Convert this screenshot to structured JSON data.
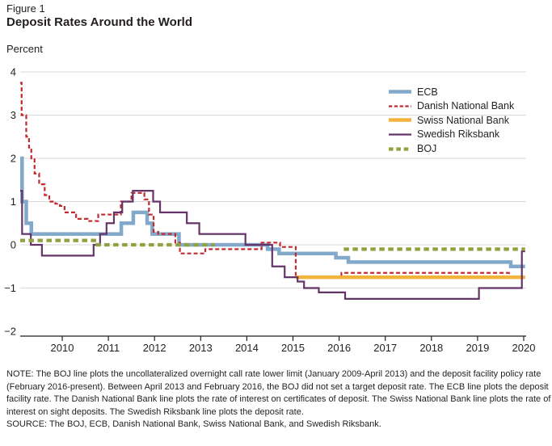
{
  "figure": {
    "label": "Figure 1",
    "title": "Deposit Rates Around the World",
    "axis_unit": "Percent"
  },
  "footer": {
    "note": "NOTE: The BOJ line plots the uncollateralized overnight call rate lower limit (January 2009-April 2013) and the deposit facility policy rate (February 2016-present). Between April 2013 and February 2016, the BOJ did not set a target deposit rate. The ECB line plots the deposit facility rate. The Danish National Bank line plots the rate of interest on certificates of deposit. The Swiss National Bank line plots the rate of interest on sight deposits. The Swedish Riksbank line plots the deposit rate.",
    "source": "SOURCE: The BOJ, ECB, Danish National Bank, Swiss National Bank, and Swedish Riksbank."
  },
  "colors": {
    "text": "#231f20",
    "grid": "#d9d9d9",
    "axis": "#231f20",
    "background": "#ffffff"
  },
  "chart_data": {
    "type": "line",
    "step": true,
    "title": "Deposit Rates Around the World",
    "xlabel": "",
    "ylabel": "Percent",
    "xlim": [
      2009.08,
      2020.03
    ],
    "ylim": [
      -2,
      4
    ],
    "x_ticks": [
      2010,
      2011,
      2012,
      2013,
      2014,
      2015,
      2016,
      2017,
      2018,
      2019,
      2020
    ],
    "y_ticks": [
      4,
      3,
      2,
      1,
      0,
      -1,
      -2
    ],
    "y_tick_labels": [
      "4",
      "3",
      "2",
      "1",
      "0",
      "−1",
      "−2"
    ],
    "grid": true,
    "legend_position": "upper right",
    "series": [
      {
        "name": "ECB",
        "color": "#82a8cc",
        "width": 4.5,
        "dash": null,
        "segments": [
          [
            [
              2009.08,
              2.0
            ],
            [
              2009.13,
              1.0
            ],
            [
              2009.22,
              0.5
            ],
            [
              2009.33,
              0.25
            ],
            [
              2011.28,
              0.5
            ],
            [
              2011.54,
              0.75
            ],
            [
              2011.84,
              0.5
            ],
            [
              2011.95,
              0.25
            ],
            [
              2012.53,
              0.0
            ],
            [
              2014.45,
              -0.1
            ],
            [
              2014.7,
              -0.2
            ],
            [
              2015.93,
              -0.3
            ],
            [
              2016.2,
              -0.4
            ],
            [
              2019.72,
              -0.5
            ],
            [
              2020.03,
              -0.5
            ]
          ]
        ]
      },
      {
        "name": "Danish National Bank",
        "color": "#bf2b30",
        "width": 2.2,
        "dash": [
          5,
          3
        ],
        "segments": [
          [
            [
              2009.08,
              3.75
            ],
            [
              2009.12,
              3.0
            ],
            [
              2009.22,
              2.5
            ],
            [
              2009.28,
              2.25
            ],
            [
              2009.33,
              2.0
            ],
            [
              2009.4,
              1.65
            ],
            [
              2009.5,
              1.4
            ],
            [
              2009.62,
              1.15
            ],
            [
              2009.72,
              1.0
            ],
            [
              2009.85,
              0.95
            ],
            [
              2009.95,
              0.9
            ],
            [
              2010.05,
              0.75
            ],
            [
              2010.3,
              0.6
            ],
            [
              2010.55,
              0.55
            ],
            [
              2010.78,
              0.7
            ],
            [
              2011.27,
              1.0
            ],
            [
              2011.5,
              1.2
            ],
            [
              2011.78,
              1.05
            ],
            [
              2011.88,
              0.7
            ],
            [
              2011.98,
              0.3
            ],
            [
              2012.08,
              0.25
            ],
            [
              2012.45,
              0.05
            ],
            [
              2012.55,
              -0.2
            ],
            [
              2013.1,
              -0.1
            ],
            [
              2014.32,
              0.05
            ],
            [
              2014.72,
              -0.05
            ],
            [
              2015.06,
              -0.75
            ],
            [
              2016.05,
              -0.65
            ],
            [
              2019.68,
              -0.75
            ],
            [
              2020.03,
              -0.75
            ]
          ]
        ]
      },
      {
        "name": "Swiss National Bank",
        "color": "#f3b33c",
        "width": 4.5,
        "dash": null,
        "segments": [
          [
            [
              2015.06,
              -0.75
            ],
            [
              2020.03,
              -0.75
            ]
          ]
        ]
      },
      {
        "name": "Swedish Riksbank",
        "color": "#653569",
        "width": 2.2,
        "dash": null,
        "segments": [
          [
            [
              2009.08,
              1.25
            ],
            [
              2009.13,
              0.25
            ],
            [
              2009.32,
              0.0
            ],
            [
              2009.56,
              -0.25
            ],
            [
              2010.68,
              0.0
            ],
            [
              2010.82,
              0.25
            ],
            [
              2010.96,
              0.5
            ],
            [
              2011.12,
              0.75
            ],
            [
              2011.3,
              1.0
            ],
            [
              2011.53,
              1.25
            ],
            [
              2011.97,
              1.0
            ],
            [
              2012.12,
              0.75
            ],
            [
              2012.7,
              0.5
            ],
            [
              2012.97,
              0.25
            ],
            [
              2013.97,
              0.0
            ],
            [
              2014.55,
              -0.5
            ],
            [
              2014.82,
              -0.75
            ],
            [
              2015.1,
              -0.85
            ],
            [
              2015.24,
              -1.0
            ],
            [
              2015.56,
              -1.1
            ],
            [
              2016.13,
              -1.25
            ],
            [
              2019.03,
              -1.0
            ],
            [
              2019.96,
              -0.15
            ],
            [
              2020.03,
              -0.15
            ]
          ]
        ]
      },
      {
        "name": "BOJ",
        "color": "#90a13e",
        "width": 4.2,
        "dash": [
          6.5,
          4.5
        ],
        "segments": [
          [
            [
              2009.08,
              0.1
            ],
            [
              2010.76,
              0.0
            ],
            [
              2013.3,
              0.0
            ]
          ],
          [
            [
              2016.1,
              -0.1
            ],
            [
              2020.03,
              -0.1
            ]
          ]
        ]
      }
    ]
  }
}
